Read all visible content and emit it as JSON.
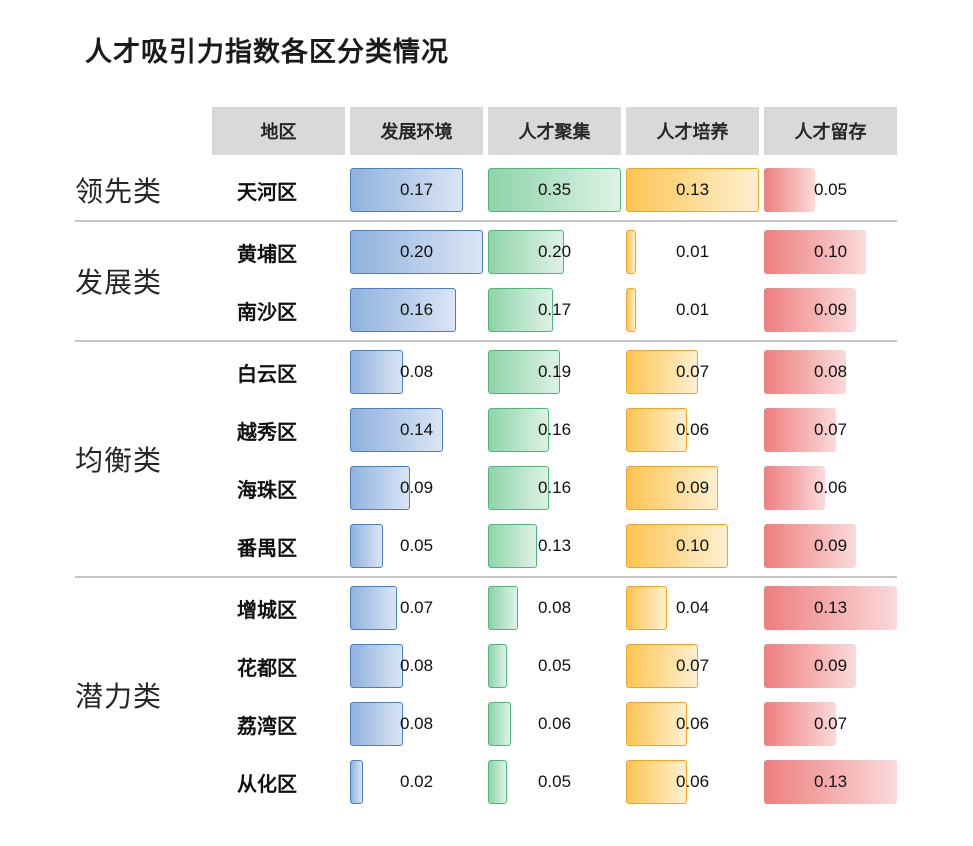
{
  "title": "人才吸引力指数各区分类情况",
  "chart_data": {
    "type": "bar",
    "layout": "grouped-table",
    "title": "人才吸引力指数各区分类情况",
    "region_header": "地区",
    "columns": [
      "发展环境",
      "人才聚集",
      "人才培养",
      "人才留存"
    ],
    "column_max": [
      0.2,
      0.35,
      0.13,
      0.13
    ],
    "value_decimals": 2,
    "header_bg": "#d9d9d9",
    "divider_color": "#c6c6c6",
    "palettes": [
      {
        "name": "blue",
        "stroke": "#4d7ec2",
        "from": "#8fb2de",
        "to": "#dbe5f4"
      },
      {
        "name": "green",
        "stroke": "#4fb57b",
        "from": "#8ed4aa",
        "to": "#def2e6"
      },
      {
        "name": "orange",
        "stroke": "#f2a51f",
        "from": "#fcc553",
        "to": "#fdf0d2"
      },
      {
        "name": "red",
        "stroke": "none",
        "from": "#ee7e7e",
        "to": "#fadada"
      }
    ],
    "groups": [
      {
        "label": "领先类",
        "rows": [
          {
            "region": "天河区",
            "values": [
              0.17,
              0.35,
              0.13,
              0.05
            ]
          }
        ]
      },
      {
        "label": "发展类",
        "rows": [
          {
            "region": "黄埔区",
            "values": [
              0.2,
              0.2,
              0.01,
              0.1
            ]
          },
          {
            "region": "南沙区",
            "values": [
              0.16,
              0.17,
              0.01,
              0.09
            ]
          }
        ]
      },
      {
        "label": "均衡类",
        "rows": [
          {
            "region": "白云区",
            "values": [
              0.08,
              0.19,
              0.07,
              0.08
            ]
          },
          {
            "region": "越秀区",
            "values": [
              0.14,
              0.16,
              0.06,
              0.07
            ]
          },
          {
            "region": "海珠区",
            "values": [
              0.09,
              0.16,
              0.09,
              0.06
            ]
          },
          {
            "region": "番禺区",
            "values": [
              0.05,
              0.13,
              0.1,
              0.09
            ]
          }
        ]
      },
      {
        "label": "潜力类",
        "rows": [
          {
            "region": "增城区",
            "values": [
              0.07,
              0.08,
              0.04,
              0.13
            ]
          },
          {
            "region": "花都区",
            "values": [
              0.08,
              0.05,
              0.07,
              0.09
            ]
          },
          {
            "region": "荔湾区",
            "values": [
              0.08,
              0.06,
              0.06,
              0.07
            ]
          },
          {
            "region": "从化区",
            "values": [
              0.02,
              0.05,
              0.06,
              0.13
            ]
          }
        ]
      }
    ]
  }
}
